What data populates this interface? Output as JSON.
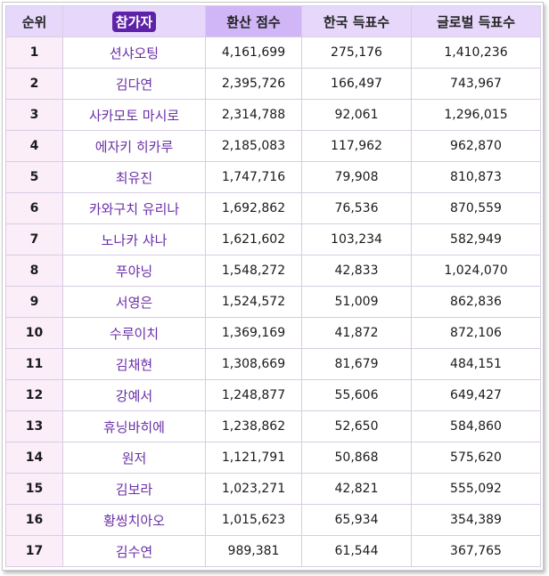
{
  "headers": {
    "rank": "순위",
    "participant": "참가자",
    "score": "환산 점수",
    "korea_votes": "한국 득표수",
    "global_votes": "글로벌 득표수"
  },
  "rows": [
    {
      "rank": "1",
      "name": "션샤오팅",
      "score": "4,161,699",
      "korea": "275,176",
      "global": "1,410,236"
    },
    {
      "rank": "2",
      "name": "김다연",
      "score": "2,395,726",
      "korea": "166,497",
      "global": "743,967"
    },
    {
      "rank": "3",
      "name": "사카모토 마시로",
      "score": "2,314,788",
      "korea": "92,061",
      "global": "1,296,015"
    },
    {
      "rank": "4",
      "name": "에자키 히카루",
      "score": "2,185,083",
      "korea": "117,962",
      "global": "962,870"
    },
    {
      "rank": "5",
      "name": "최유진",
      "score": "1,747,716",
      "korea": "79,908",
      "global": "810,873"
    },
    {
      "rank": "6",
      "name": "카와구치 유리나",
      "score": "1,692,862",
      "korea": "76,536",
      "global": "870,559"
    },
    {
      "rank": "7",
      "name": "노나카 샤나",
      "score": "1,621,602",
      "korea": "103,234",
      "global": "582,949"
    },
    {
      "rank": "8",
      "name": "푸야닝",
      "score": "1,548,272",
      "korea": "42,833",
      "global": "1,024,070"
    },
    {
      "rank": "9",
      "name": "서영은",
      "score": "1,524,572",
      "korea": "51,009",
      "global": "862,836"
    },
    {
      "rank": "10",
      "name": "수루이치",
      "score": "1,369,169",
      "korea": "41,872",
      "global": "872,106"
    },
    {
      "rank": "11",
      "name": "김채현",
      "score": "1,308,669",
      "korea": "81,679",
      "global": "484,151"
    },
    {
      "rank": "12",
      "name": "강예서",
      "score": "1,248,877",
      "korea": "55,606",
      "global": "649,427"
    },
    {
      "rank": "13",
      "name": "휴닝바히에",
      "score": "1,238,862",
      "korea": "52,650",
      "global": "584,860"
    },
    {
      "rank": "14",
      "name": "원저",
      "score": "1,121,791",
      "korea": "50,868",
      "global": "575,620"
    },
    {
      "rank": "15",
      "name": "김보라",
      "score": "1,023,271",
      "korea": "42,821",
      "global": "555,092"
    },
    {
      "rank": "16",
      "name": "황씽치아오",
      "score": "1,015,623",
      "korea": "65,934",
      "global": "354,389"
    },
    {
      "rank": "17",
      "name": "김수연",
      "score": "989,381",
      "korea": "61,544",
      "global": "367,765"
    }
  ]
}
